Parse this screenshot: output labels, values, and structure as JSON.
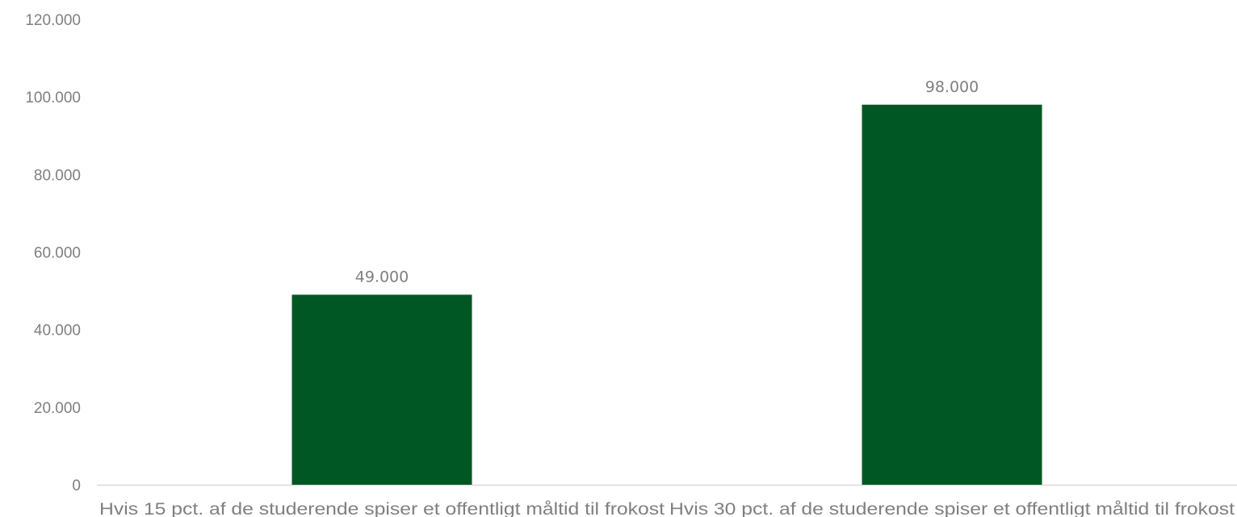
{
  "chart_data": {
    "type": "bar",
    "categories": [
      "Hvis 15 pct. af de studerende spiser et offentligt måltid til frokost",
      "Hvis 30 pct. af de studerende spiser et offentligt måltid til frokost"
    ],
    "values": [
      49000,
      98000
    ],
    "data_labels": [
      "49.000",
      "98.000"
    ],
    "title": "",
    "xlabel": "",
    "ylabel": "",
    "ylim": [
      0,
      120000
    ],
    "yticks": [
      0,
      20000,
      40000,
      60000,
      80000,
      100000,
      120000
    ],
    "ytick_labels": [
      "0",
      "20.000",
      "40.000",
      "60.000",
      "80.000",
      "100.000",
      "120.000"
    ],
    "grid": false,
    "legend": "none",
    "colors": {
      "bar": "#005723",
      "axis": "#d9d9d9",
      "text": "#7f7f7f"
    }
  }
}
